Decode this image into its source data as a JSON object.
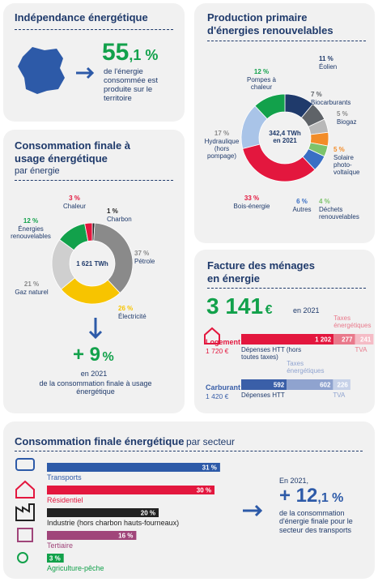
{
  "independence": {
    "title": "Indépendance énergétique",
    "value": "55",
    "value_decimal": ",1 %",
    "caption": "de l'énergie consommée est produite sur le territoire"
  },
  "production": {
    "title": "Production primaire d'énergies renouvelables",
    "center": "342,4 TWh en 2021",
    "labels": [
      "Éolien",
      "Biocarburants",
      "Biogaz",
      "Solaire photo-voltaïque",
      "Déchets renouvelables",
      "Autres",
      "Bois-énergie",
      "Hydraulique (hors pompage)",
      "Pompes à chaleur"
    ],
    "values": [
      11,
      7,
      5,
      5,
      4,
      6,
      33,
      17,
      12
    ],
    "value_labels": [
      "11 %",
      "7 %",
      "5 %",
      "5 %",
      "4 %",
      "6 %",
      "33 %",
      "17 %",
      "12 %"
    ],
    "colors": [
      "#1f3a6b",
      "#5f6368",
      "#b8b8b8",
      "#f28c28",
      "#7cc36b",
      "#3a6fc4",
      "#e3173e",
      "#a9c4e8",
      "#12a14b"
    ]
  },
  "consumption": {
    "title": "Consommation finale à usage énergétique",
    "subtitle": "par énergie",
    "center": "1 621 TWh",
    "labels": [
      "Charbon",
      "Pétrole",
      "Électricité",
      "Gaz naturel",
      "Énergies renouvelables",
      "Chaleur"
    ],
    "values": [
      1,
      37,
      26,
      21,
      12,
      3
    ],
    "value_labels": [
      "1 %",
      "37 %",
      "26 %",
      "21 %",
      "12 %",
      "3 %"
    ],
    "colors": [
      "#222222",
      "#8a8a8a",
      "#f7c400",
      "#cfcfcf",
      "#12a14b",
      "#e3173e"
    ],
    "change": "+ 9",
    "change_unit": "%",
    "change_year": "en 2021",
    "change_caption": "de la consommation finale à usage énergétique"
  },
  "bill": {
    "title": "Facture des ménages en énergie",
    "total": "3 141",
    "total_unit": "€",
    "total_year": "en 2021",
    "rows": [
      {
        "name": "Logement",
        "total": "1 720 €",
        "values": [
          1202,
          277,
          241
        ],
        "value_labels": [
          "1 202",
          "277",
          "241"
        ],
        "components": [
          "Dépenses HTT (hors toutes taxes)",
          "Taxes énergétiques",
          "TVA"
        ],
        "colors": [
          "#e3173e",
          "#e9798b",
          "#f5bcc6"
        ]
      },
      {
        "name": "Carburant",
        "total": "1 420 €",
        "values": [
          592,
          602,
          226
        ],
        "value_labels": [
          "592",
          "602",
          "226"
        ],
        "components": [
          "Dépenses HTT",
          "Taxes énergétiques",
          "TVA"
        ],
        "colors": [
          "#3a5fa8",
          "#8fa3cf",
          "#c6d1e8"
        ]
      }
    ]
  },
  "sectors": {
    "title": "Consommation finale énergétique",
    "subtitle": "par secteur",
    "categories": [
      "Transports",
      "Résidentiel",
      "Industrie (hors charbon hauts-fourneaux)",
      "Tertiaire",
      "Agriculture-pêche"
    ],
    "values": [
      31,
      30,
      20,
      16,
      3
    ],
    "value_labels": [
      "31 %",
      "30 %",
      "20 %",
      "16 %",
      "3 %"
    ],
    "colors": [
      "#2d5aa8",
      "#e3173e",
      "#222222",
      "#a0457a",
      "#12a14b"
    ],
    "change_intro": "En 2021,",
    "change": "+ 12",
    "change_decimal": ",1 %",
    "change_caption": "de la consommation d'énergie finale pour le secteur des transports"
  }
}
